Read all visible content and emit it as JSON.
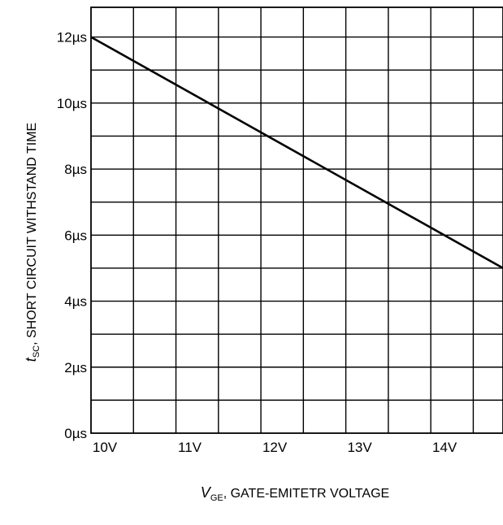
{
  "chart_data": {
    "type": "line",
    "title": "",
    "xlabel": {
      "symbol": "V",
      "subscript": "GE",
      "text": ", GATE-EMITETR VOLTAGE"
    },
    "ylabel": {
      "symbol": "t",
      "subscript": "SC",
      "text": ",  SHORT CIRCUIT WITHSTAND TIME"
    },
    "x_unit": "V",
    "y_unit": "µs",
    "xlim": [
      10,
      14.85
    ],
    "ylim": [
      0,
      12.9
    ],
    "x_ticks": [
      10,
      11,
      12,
      13,
      14
    ],
    "x_tick_labels": [
      "10V",
      "11V",
      "12V",
      "13V",
      "14V"
    ],
    "y_ticks": [
      0,
      2,
      4,
      6,
      8,
      10,
      12
    ],
    "y_tick_labels": [
      "0µs",
      "2µs",
      "4µs",
      "6µs",
      "8µs",
      "10µs",
      "12µs"
    ],
    "grid": true,
    "series": [
      {
        "name": "",
        "color": "#000000",
        "x": [
          10,
          14.85
        ],
        "y": [
          12,
          5
        ]
      }
    ]
  }
}
